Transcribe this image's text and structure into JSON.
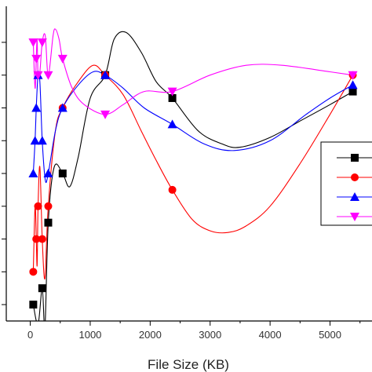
{
  "chart_data": {
    "type": "scatter",
    "title": "",
    "xlabel": "File Size (KB)",
    "ylabel": "",
    "xlim": [
      -400,
      5700
    ],
    "ylim": [
      0.5,
      10.1
    ],
    "x_ticks": [
      0,
      1000,
      2000,
      3000,
      4000,
      5000
    ],
    "x_tick_labels": [
      "0",
      "1000",
      "2000",
      "3000",
      "4000",
      "5000"
    ],
    "y_ticks": [
      1,
      2,
      3,
      4,
      5,
      6,
      7,
      8,
      9
    ],
    "grid": false,
    "legend": "right",
    "series": [
      {
        "color": "#000000",
        "marker": "square",
        "points": [
          [
            50,
            1
          ],
          [
            200,
            1.5
          ],
          [
            300,
            3.5
          ],
          [
            540,
            5
          ],
          [
            1250,
            8
          ],
          [
            2370,
            7.3
          ],
          [
            5380,
            7.5
          ]
        ],
        "curve": [
          [
            50,
            1
          ],
          [
            130,
            0.4
          ],
          [
            200,
            1.5
          ],
          [
            245,
            0.3
          ],
          [
            300,
            3.5
          ],
          [
            400,
            5.2
          ],
          [
            540,
            5
          ],
          [
            660,
            4.6
          ],
          [
            800,
            5.5
          ],
          [
            1000,
            7.3
          ],
          [
            1250,
            8
          ],
          [
            1400,
            9.1
          ],
          [
            1600,
            9.3
          ],
          [
            1850,
            8.7
          ],
          [
            2100,
            7.8
          ],
          [
            2370,
            7.3
          ],
          [
            2800,
            6.3
          ],
          [
            3200,
            5.9
          ],
          [
            3500,
            5.8
          ],
          [
            4000,
            6.1
          ],
          [
            4500,
            6.6
          ],
          [
            5000,
            7.1
          ],
          [
            5380,
            7.5
          ]
        ]
      },
      {
        "color": "#ff0000",
        "marker": "circle",
        "points": [
          [
            50,
            2
          ],
          [
            100,
            3
          ],
          [
            130,
            4
          ],
          [
            200,
            3
          ],
          [
            300,
            4
          ],
          [
            540,
            7
          ],
          [
            1250,
            8
          ],
          [
            2370,
            4.5
          ],
          [
            5380,
            8
          ]
        ],
        "curve": [
          [
            50,
            2
          ],
          [
            80,
            4
          ],
          [
            100,
            3
          ],
          [
            115,
            2.2
          ],
          [
            130,
            4
          ],
          [
            160,
            5.2
          ],
          [
            200,
            3
          ],
          [
            245,
            1.8
          ],
          [
            300,
            4
          ],
          [
            420,
            6.3
          ],
          [
            540,
            7
          ],
          [
            800,
            7.8
          ],
          [
            1050,
            8.3
          ],
          [
            1250,
            8
          ],
          [
            1550,
            7.4
          ],
          [
            1850,
            6.3
          ],
          [
            2100,
            5.4
          ],
          [
            2370,
            4.5
          ],
          [
            2700,
            3.6
          ],
          [
            3000,
            3.25
          ],
          [
            3300,
            3.2
          ],
          [
            3600,
            3.4
          ],
          [
            4000,
            4
          ],
          [
            4500,
            5.3
          ],
          [
            5000,
            6.8
          ],
          [
            5380,
            8
          ]
        ]
      },
      {
        "color": "#0000ff",
        "marker": "triangle-up",
        "points": [
          [
            50,
            5
          ],
          [
            80,
            6
          ],
          [
            100,
            7
          ],
          [
            130,
            8
          ],
          [
            200,
            6
          ],
          [
            300,
            5
          ],
          [
            540,
            7
          ],
          [
            1250,
            8
          ],
          [
            2370,
            6.5
          ],
          [
            5380,
            7.7
          ]
        ],
        "curve": [
          [
            50,
            5
          ],
          [
            80,
            6
          ],
          [
            100,
            7
          ],
          [
            130,
            8
          ],
          [
            160,
            7.8
          ],
          [
            200,
            6
          ],
          [
            250,
            4.8
          ],
          [
            300,
            5
          ],
          [
            420,
            6.3
          ],
          [
            540,
            7
          ],
          [
            800,
            7.7
          ],
          [
            1050,
            8.1
          ],
          [
            1250,
            8
          ],
          [
            1550,
            7.6
          ],
          [
            1900,
            7
          ],
          [
            2370,
            6.5
          ],
          [
            2900,
            5.9
          ],
          [
            3400,
            5.7
          ],
          [
            4000,
            6
          ],
          [
            4600,
            6.8
          ],
          [
            5000,
            7.3
          ],
          [
            5380,
            7.7
          ]
        ]
      },
      {
        "color": "#ff00ff",
        "marker": "triangle-down",
        "points": [
          [
            50,
            9
          ],
          [
            100,
            8.5
          ],
          [
            130,
            8
          ],
          [
            200,
            9
          ],
          [
            300,
            8
          ],
          [
            540,
            8.5
          ],
          [
            1250,
            6.8
          ],
          [
            2370,
            7.5
          ],
          [
            5380,
            8
          ]
        ],
        "curve": [
          [
            50,
            9
          ],
          [
            80,
            7.6
          ],
          [
            100,
            8.5
          ],
          [
            115,
            9.1
          ],
          [
            130,
            8
          ],
          [
            160,
            8.1
          ],
          [
            200,
            9
          ],
          [
            250,
            9.2
          ],
          [
            300,
            8
          ],
          [
            380,
            9.2
          ],
          [
            420,
            9.4
          ],
          [
            480,
            9.1
          ],
          [
            540,
            8.5
          ],
          [
            700,
            7.6
          ],
          [
            900,
            7.1
          ],
          [
            1250,
            6.8
          ],
          [
            1550,
            7.1
          ],
          [
            1900,
            7.5
          ],
          [
            2370,
            7.5
          ],
          [
            3000,
            8
          ],
          [
            3600,
            8.3
          ],
          [
            4200,
            8.3
          ],
          [
            5000,
            8.1
          ],
          [
            5380,
            8
          ]
        ]
      }
    ]
  }
}
